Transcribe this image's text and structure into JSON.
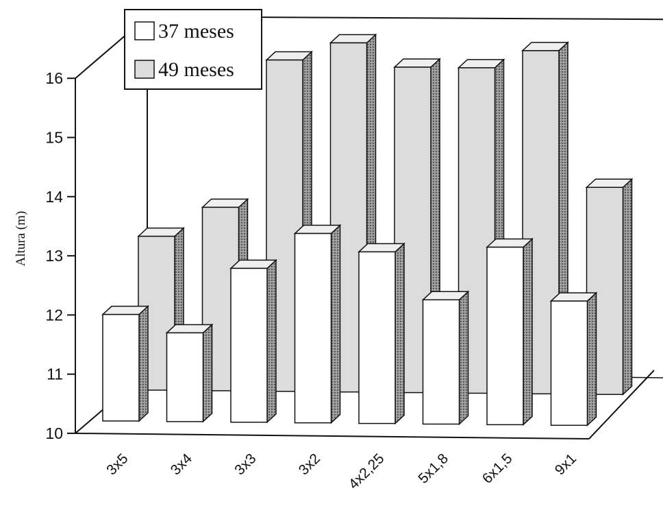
{
  "colors": {
    "background": "#ffffff",
    "axis": "#111111",
    "series_37_face": "#ffffff",
    "series_49_face": "#dcdcdc",
    "bar_side": "#8a8a8a",
    "bar_top": "#efefef"
  },
  "chart_data": {
    "type": "bar",
    "view": "3d",
    "ylabel": "Altura (m)",
    "xlabel": "",
    "ylim": [
      10,
      16
    ],
    "yticks": [
      10,
      11,
      12,
      13,
      14,
      15,
      16
    ],
    "grid": false,
    "legend_position": "top-left",
    "categories": [
      "3x5",
      "3x4",
      "3x3",
      "3x2",
      "4x2,25",
      "5x1,8",
      "6x1,5",
      "9x1"
    ],
    "series": [
      {
        "name": "37 meses",
        "values": [
          11.8,
          11.5,
          12.6,
          13.2,
          12.9,
          12.1,
          13.0,
          12.1
        ]
      },
      {
        "name": "49 meses",
        "values": [
          12.6,
          13.1,
          15.6,
          15.9,
          15.5,
          15.5,
          15.8,
          13.5
        ]
      }
    ]
  }
}
